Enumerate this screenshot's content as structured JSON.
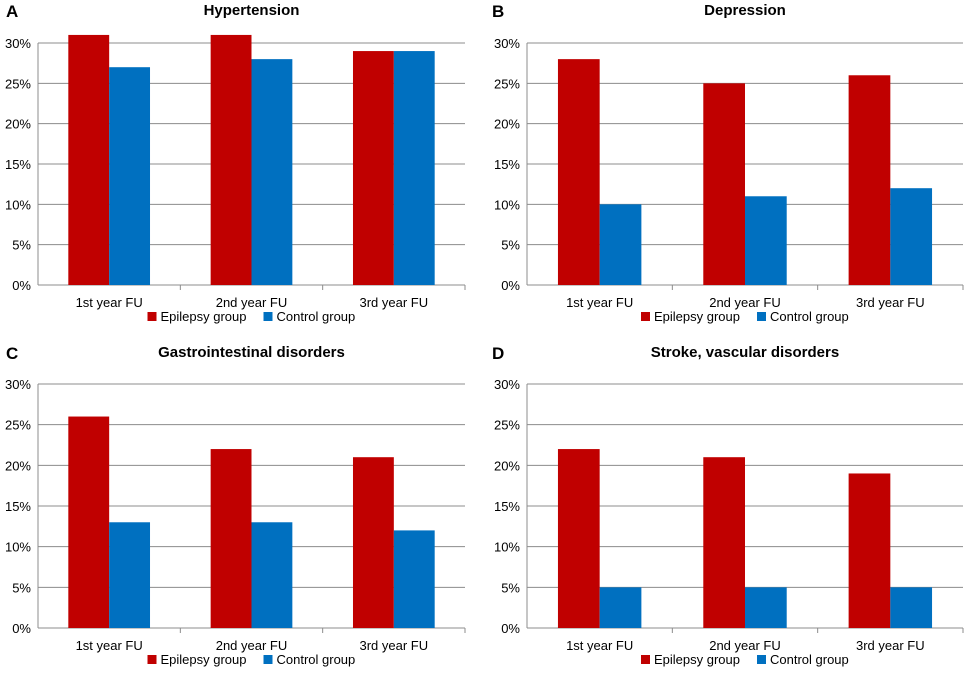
{
  "colors": {
    "epilepsy": "#C00000",
    "control": "#0070C0",
    "grid": "#8C8C8C",
    "text": "#000000"
  },
  "chart_data": [
    {
      "panel": "A",
      "type": "bar",
      "title": "Hypertension",
      "categories": [
        "1st year FU",
        "2nd year FU",
        "3rd year FU"
      ],
      "series": [
        {
          "name": "Epilepsy group",
          "values": [
            31,
            31,
            29
          ]
        },
        {
          "name": "Control group",
          "values": [
            27,
            28,
            29
          ]
        }
      ],
      "yticks": [
        "0%",
        "5%",
        "10%",
        "15%",
        "20%",
        "25%",
        "30%"
      ],
      "ylim": [
        0,
        30
      ],
      "grid": true,
      "legend": "bottom"
    },
    {
      "panel": "B",
      "type": "bar",
      "title": "Depression",
      "categories": [
        "1st year FU",
        "2nd year FU",
        "3rd year FU"
      ],
      "series": [
        {
          "name": "Epilepsy group",
          "values": [
            28,
            25,
            26
          ]
        },
        {
          "name": "Control group",
          "values": [
            10,
            11,
            12
          ]
        }
      ],
      "yticks": [
        "0%",
        "5%",
        "10%",
        "15%",
        "20%",
        "25%",
        "30%"
      ],
      "ylim": [
        0,
        30
      ],
      "grid": true,
      "legend": "bottom"
    },
    {
      "panel": "C",
      "type": "bar",
      "title": "Gastrointestinal disorders",
      "categories": [
        "1st year FU",
        "2nd year FU",
        "3rd year FU"
      ],
      "series": [
        {
          "name": "Epilepsy group",
          "values": [
            26,
            22,
            21
          ]
        },
        {
          "name": "Control group",
          "values": [
            13,
            13,
            12
          ]
        }
      ],
      "yticks": [
        "0%",
        "5%",
        "10%",
        "15%",
        "20%",
        "25%",
        "30%"
      ],
      "ylim": [
        0,
        30
      ],
      "grid": true,
      "legend": "bottom"
    },
    {
      "panel": "D",
      "type": "bar",
      "title": "Stroke, vascular disorders",
      "categories": [
        "1st year FU",
        "2nd year FU",
        "3rd year FU"
      ],
      "series": [
        {
          "name": "Epilepsy group",
          "values": [
            22,
            21,
            19
          ]
        },
        {
          "name": "Control group",
          "values": [
            5,
            5,
            5
          ]
        }
      ],
      "yticks": [
        "0%",
        "5%",
        "10%",
        "15%",
        "20%",
        "25%",
        "30%"
      ],
      "ylim": [
        0,
        30
      ],
      "grid": true,
      "legend": "bottom"
    }
  ]
}
